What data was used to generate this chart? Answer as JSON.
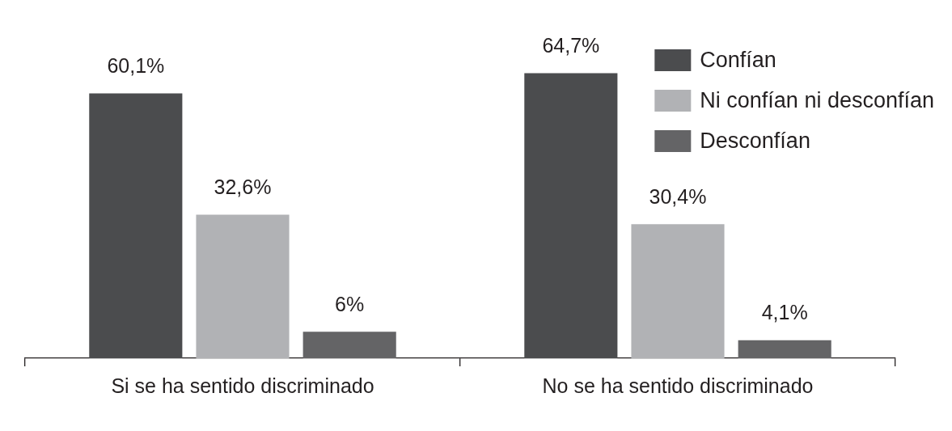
{
  "chart_data": {
    "type": "bar",
    "categories": [
      "Si se ha sentido discriminado",
      "No se ha sentido discriminado"
    ],
    "series": [
      {
        "name": "Confían",
        "color": "#4b4c4e",
        "values": [
          60.1,
          64.7
        ],
        "value_labels": [
          "60,1%",
          "64,7%"
        ]
      },
      {
        "name": "Ni confían ni desconfían",
        "color": "#b1b2b5",
        "values": [
          32.6,
          30.4
        ],
        "value_labels": [
          "32,6%",
          "30,4%"
        ]
      },
      {
        "name": "Desconfían",
        "color": "#646466",
        "values": [
          6,
          4.1
        ],
        "value_labels": [
          "6%",
          "4,1%"
        ]
      }
    ],
    "legend": "top right",
    "grid": false
  }
}
